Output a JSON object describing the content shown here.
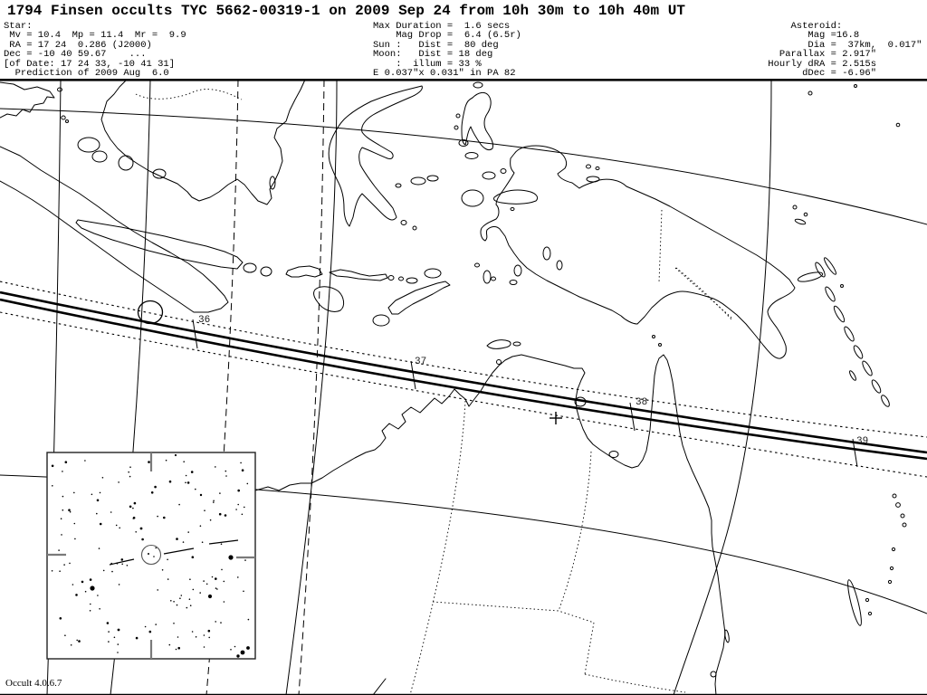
{
  "window": {
    "title": "1794 Finsen occults TYC 5662-00319-1 on 2009 Sep 24 from 10h 30m to 10h 40m UT"
  },
  "header": {
    "star_block": [
      "Star:",
      " Mv = 10.4  Mp = 11.4  Mr =  9.9",
      " RA = 17 24  0.286 (J2000)",
      "Dec = -10 40 59.67    ...",
      "[of Date: 17 24 33, -10 41 31]",
      "  Prediction of 2009 Aug  6.0"
    ],
    "event_block": [
      "Max Duration =  1.6 secs",
      "    Mag Drop =  6.4 (6.5r)",
      "Sun :   Dist =  80 deg",
      "Moon:   Dist = 18 deg",
      "    :  illum = 33 %",
      "E 0.037\"x 0.031\" in PA 82"
    ],
    "asteroid_block": [
      "     Asteroid:",
      "        Mag =16.8",
      "        Dia =  37km,  0.017\"",
      "   Parallax = 2.917\"",
      " Hourly dRA = 2.515s",
      "       dDec = -6.96\""
    ]
  },
  "map": {
    "path_time_ticks": [
      "36",
      "37",
      "38",
      "39"
    ]
  },
  "inset": {
    "field_star_count": 155,
    "bright_stars": [
      [
        255,
        616,
        2.6
      ],
      [
        102,
        650,
        2.6
      ],
      [
        232,
        659,
        2.1
      ],
      [
        268,
        721,
        2.4
      ],
      [
        274,
        716,
        1.9
      ],
      [
        263,
        725,
        1.7
      ],
      [
        156,
        584,
        1.4
      ],
      [
        194,
        503,
        1.1
      ],
      [
        131,
        696,
        1.4
      ],
      [
        222,
        547,
        1.2
      ]
    ]
  },
  "footer": {
    "version": "Occult 4.0.6.7"
  },
  "colors": {
    "background": "#ffffff",
    "ink": "#000000",
    "inset_tick_gray": "#7a7a7a"
  }
}
